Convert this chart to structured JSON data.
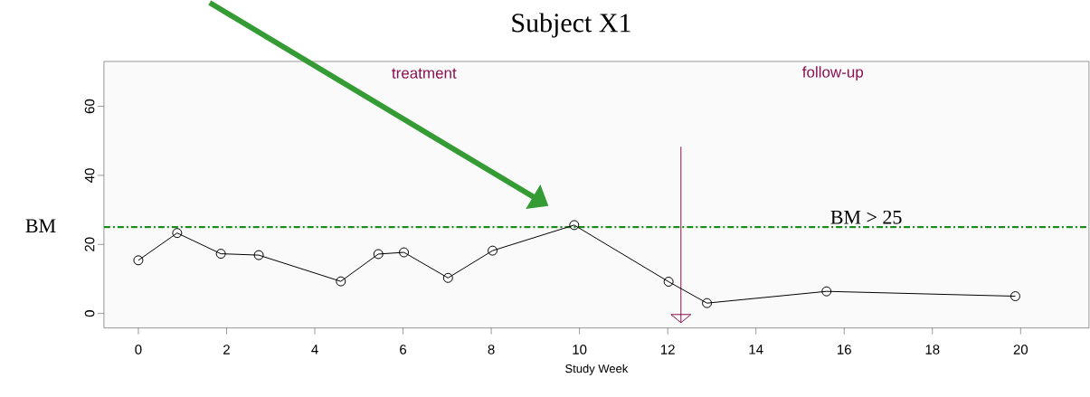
{
  "chart_data": {
    "type": "line",
    "title": "Subject X1",
    "xlabel": "Study Week",
    "ylabel": "BM",
    "x": [
      0.0,
      0.88,
      1.87,
      2.73,
      4.59,
      5.44,
      6.02,
      7.02,
      8.03,
      9.88,
      12.02,
      12.89,
      15.6,
      19.88
    ],
    "values": [
      15.4,
      23.3,
      17.3,
      16.9,
      9.3,
      17.2,
      17.7,
      10.3,
      18.2,
      25.6,
      9.2,
      3.0,
      6.4,
      5.0
    ],
    "color": "#000000",
    "marker": "circle",
    "xlim": [
      -0.78,
      21.55
    ],
    "ylim": [
      -4.2,
      73
    ],
    "xticks": [
      0,
      2,
      4,
      6,
      8,
      10,
      12,
      14,
      16,
      18,
      20
    ],
    "yticks": [
      0,
      20,
      40,
      60
    ],
    "ref_lines": [
      {
        "axis": "y",
        "value": 25,
        "label": "BM > 25",
        "color": "#1a8c1a",
        "line_style": "dashdot"
      },
      {
        "axis": "x",
        "value": 12.3,
        "color": "#8b1050"
      }
    ],
    "annotations": [
      "treatment",
      "follow-up"
    ]
  }
}
